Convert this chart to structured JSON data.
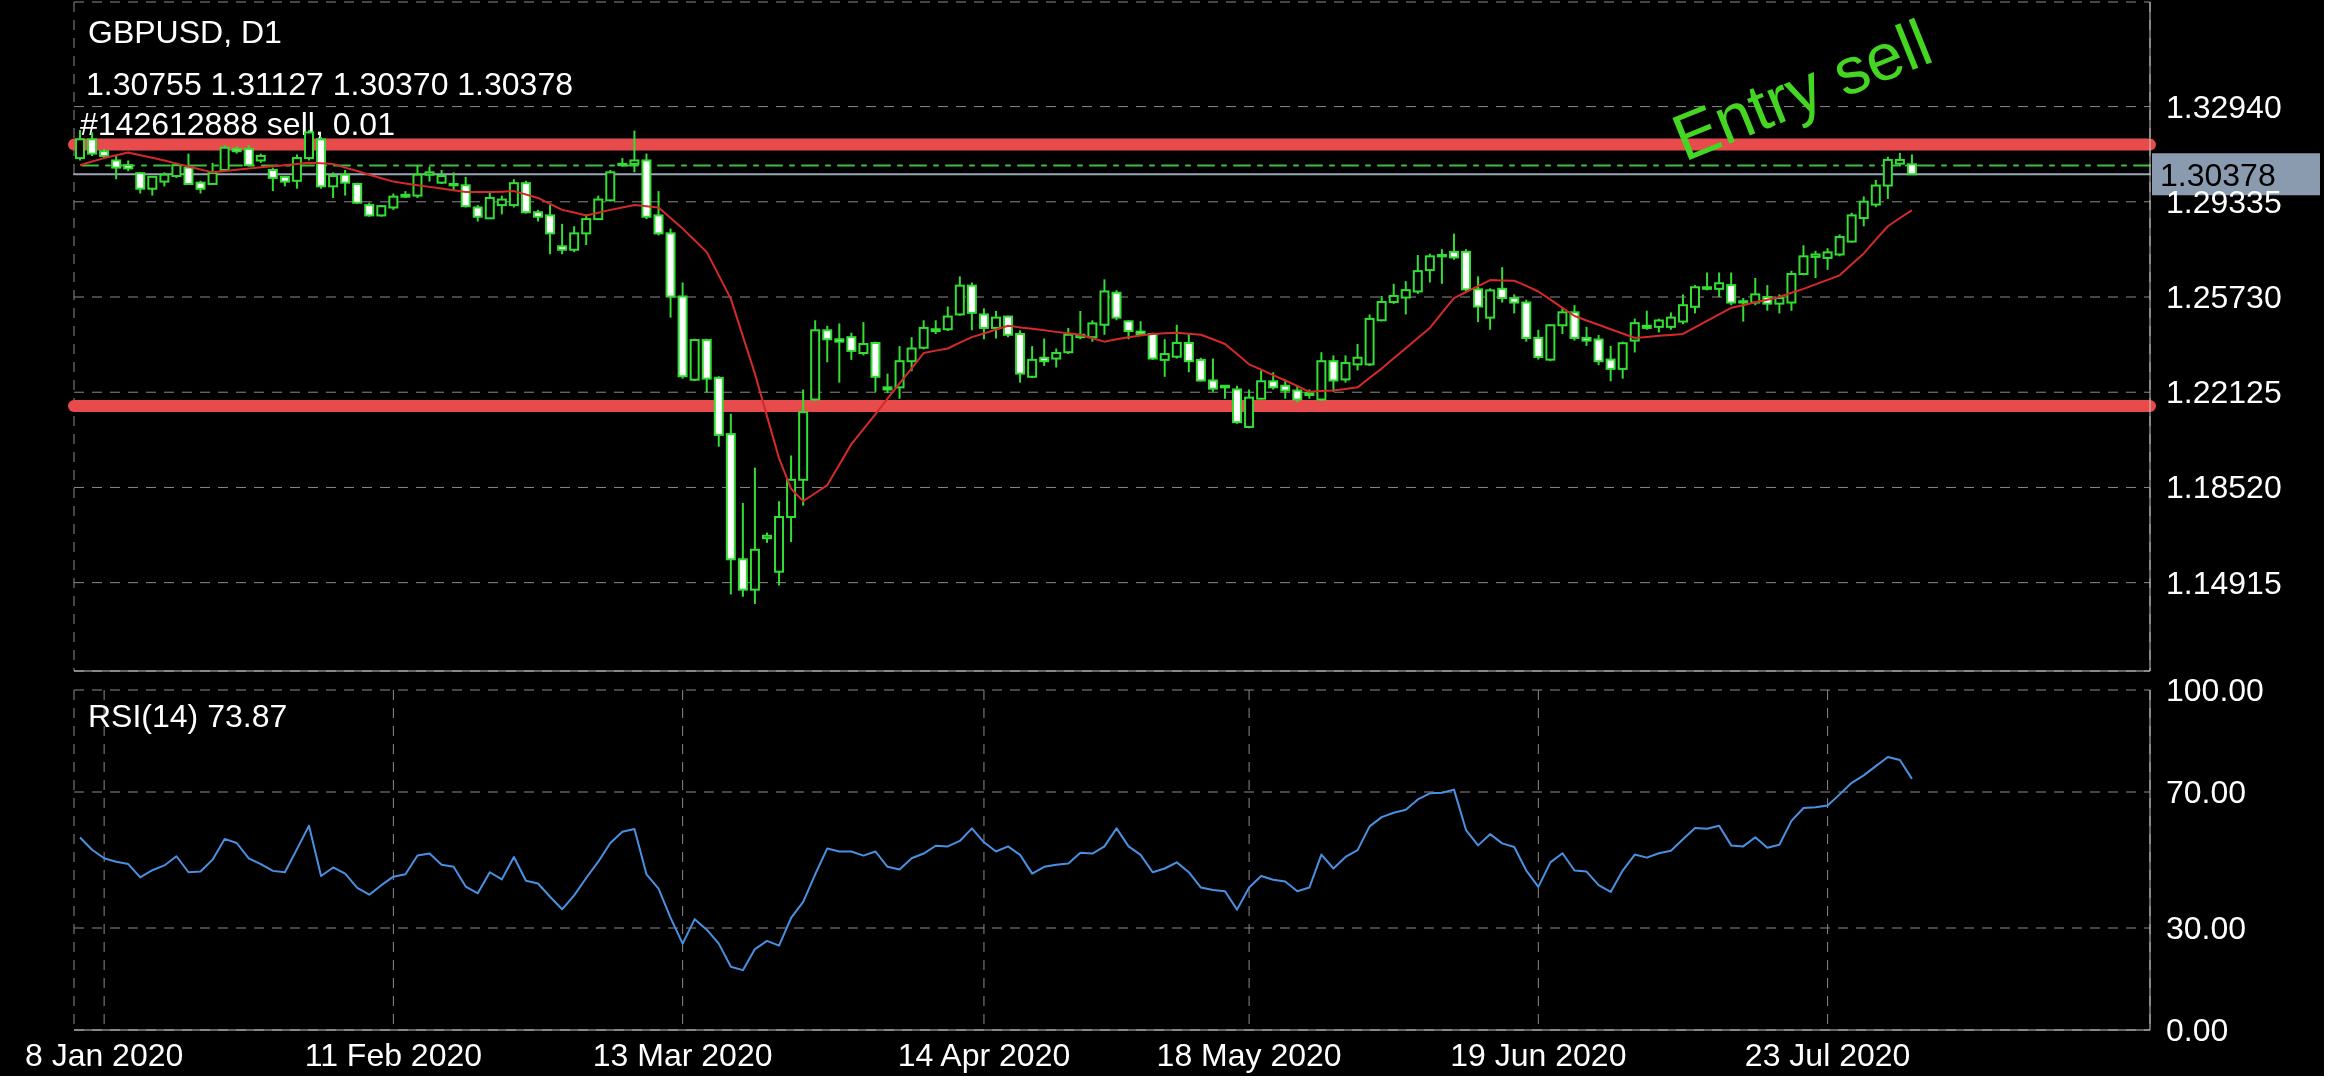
{
  "chart_data": [
    {
      "type": "candlestick",
      "title": "GBPUSD, D1",
      "subtitle": "1.30755 1.31127 1.30370 1.30378",
      "annotations": [
        "Entry sell"
      ],
      "categories": [
        null,
        null,
        null,
        null,
        null,
        null,
        null,
        null,
        null,
        null,
        null,
        null,
        null,
        null,
        null,
        null,
        null,
        null,
        null,
        null,
        null,
        null,
        null,
        null,
        null,
        null,
        null,
        null,
        null,
        null,
        null,
        null,
        null,
        null,
        null,
        null,
        null,
        null,
        null,
        null,
        null,
        null,
        null,
        null,
        null,
        null,
        null,
        null,
        null,
        null,
        null,
        null,
        null,
        null,
        null,
        null,
        null,
        null,
        null,
        null,
        null,
        null,
        null,
        null,
        null,
        null,
        null,
        null,
        null,
        null,
        null,
        null,
        null,
        null,
        null,
        null,
        null,
        null,
        null,
        null,
        null,
        null,
        null,
        null,
        null,
        null,
        null,
        null,
        null,
        null,
        null,
        null,
        null,
        null,
        null,
        null,
        null,
        null,
        null,
        null,
        null,
        null,
        null,
        null,
        null,
        null,
        null,
        null,
        null,
        null,
        null,
        null,
        null,
        null,
        null,
        null,
        null,
        null,
        null,
        null,
        null,
        null,
        null,
        null,
        null,
        null,
        null,
        null,
        null,
        null,
        null,
        null,
        null,
        null,
        null,
        null,
        null,
        null,
        null,
        null,
        null,
        null,
        null,
        null,
        null,
        null,
        null,
        null,
        null,
        null,
        null,
        null,
        null
      ],
      "color": "#33dd33",
      "ohlc": [
        [
          1.3099,
          1.3205,
          1.309,
          1.317
        ],
        [
          1.317,
          1.3196,
          1.3107,
          1.3116
        ],
        [
          1.3125,
          1.3134,
          1.3099,
          1.3107
        ],
        [
          1.309,
          1.3107,
          1.3019,
          1.3063
        ],
        [
          1.3072,
          1.309,
          1.3049,
          1.306
        ],
        [
          1.3042,
          1.3045,
          1.2965,
          1.2983
        ],
        [
          1.2983,
          1.3031,
          1.2957,
          1.3028
        ],
        [
          1.301,
          1.3045,
          1.2992,
          1.3036
        ],
        [
          1.3031,
          1.3081,
          1.3024,
          1.3072
        ],
        [
          1.3063,
          1.3116,
          1.2997,
          1.3001
        ],
        [
          1.3006,
          1.3013,
          1.2965,
          1.2983
        ],
        [
          1.3001,
          1.3081,
          1.2997,
          1.3042
        ],
        [
          1.3054,
          1.3148,
          1.3049,
          1.3138
        ],
        [
          1.3134,
          1.3143,
          1.3116,
          1.3125
        ],
        [
          1.3134,
          1.3148,
          1.3067,
          1.3072
        ],
        [
          1.309,
          1.3116,
          1.3081,
          1.3107
        ],
        [
          1.3054,
          1.3063,
          1.2974,
          1.3024
        ],
        [
          1.3028,
          1.3031,
          1.2992,
          1.301
        ],
        [
          1.3013,
          1.3113,
          1.2983,
          1.3099
        ],
        [
          1.3099,
          1.3205,
          1.309,
          1.3196
        ],
        [
          1.317,
          1.3179,
          1.2983,
          1.2992
        ],
        [
          1.2992,
          1.3045,
          1.2948,
          1.3031
        ],
        [
          1.3036,
          1.3054,
          1.2957,
          1.3006
        ],
        [
          1.3001,
          1.3006,
          1.2926,
          1.293
        ],
        [
          1.2921,
          1.293,
          1.2877,
          1.2882
        ],
        [
          1.2882,
          1.2921,
          1.2877,
          1.2917
        ],
        [
          1.2912,
          1.2965,
          1.2903,
          1.2953
        ],
        [
          1.296,
          1.2974,
          1.2948,
          1.2953
        ],
        [
          1.2957,
          1.3072,
          1.2948,
          1.3036
        ],
        [
          1.3036,
          1.3067,
          1.301,
          1.3045
        ],
        [
          1.3006,
          1.3054,
          1.3001,
          1.3031
        ],
        [
          1.3001,
          1.3045,
          1.2974,
          1.2996
        ],
        [
          1.2996,
          1.3028,
          1.2912,
          1.2917
        ],
        [
          1.2912,
          1.2921,
          1.2859,
          1.2877
        ],
        [
          1.2871,
          1.2974,
          1.2868,
          1.2948
        ],
        [
          1.2921,
          1.2957,
          1.2886,
          1.2942
        ],
        [
          1.2921,
          1.3019,
          1.2912,
          1.3004
        ],
        [
          1.3004,
          1.3013,
          1.2889,
          1.2894
        ],
        [
          1.2894,
          1.2903,
          1.2859,
          1.2877
        ],
        [
          1.2882,
          1.2921,
          1.2735,
          1.2814
        ],
        [
          1.2765,
          1.285,
          1.2735,
          1.2752
        ],
        [
          1.2752,
          1.2841,
          1.2743,
          1.2814
        ],
        [
          1.2814,
          1.2886,
          1.277,
          1.2868
        ],
        [
          1.2868,
          1.2957,
          1.2864,
          1.2942
        ],
        [
          1.2939,
          1.3054,
          1.2935,
          1.3045
        ],
        [
          1.3072,
          1.3099,
          1.3067,
          1.3077
        ],
        [
          1.3077,
          1.3203,
          1.3045,
          1.309
        ],
        [
          1.309,
          1.3116,
          1.2868,
          1.2877
        ],
        [
          1.2882,
          1.2974,
          1.2806,
          1.2814
        ],
        [
          1.2814,
          1.2832,
          1.2495,
          1.2575
        ],
        [
          1.2575,
          1.2628,
          1.2264,
          1.2273
        ],
        [
          1.226,
          1.2415,
          1.2255,
          1.241
        ],
        [
          1.241,
          1.2415,
          1.2211,
          1.2264
        ],
        [
          1.2267,
          1.2273,
          1.2006,
          1.2051
        ],
        [
          1.2054,
          1.2131,
          1.1447,
          1.158
        ],
        [
          1.158,
          1.1793,
          1.1438,
          1.1465
        ],
        [
          1.1465,
          1.1927,
          1.1411,
          1.1616
        ],
        [
          1.166,
          1.1681,
          1.1642,
          1.1669
        ],
        [
          1.1533,
          1.18,
          1.1481,
          1.174
        ],
        [
          1.174,
          1.1973,
          1.1645,
          1.1881
        ],
        [
          1.1881,
          1.2223,
          1.1783,
          1.2137
        ],
        [
          1.2185,
          1.2485,
          1.218,
          1.2447
        ],
        [
          1.2447,
          1.2464,
          1.2326,
          1.2413
        ],
        [
          1.2413,
          1.2473,
          1.2249,
          1.2404
        ],
        [
          1.2421,
          1.2438,
          1.2335,
          1.2369
        ],
        [
          1.2361,
          1.2478,
          1.2352,
          1.2395
        ],
        [
          1.2399,
          1.2404,
          1.2214,
          1.2271
        ],
        [
          1.2231,
          1.2283,
          1.2209,
          1.2223
        ],
        [
          1.2231,
          1.2387,
          1.2188,
          1.233
        ],
        [
          1.233,
          1.2421,
          1.2292,
          1.2378
        ],
        [
          1.2381,
          1.2485,
          1.2375,
          1.2456
        ],
        [
          1.2451,
          1.2485,
          1.2433,
          1.2444
        ],
        [
          1.2451,
          1.2537,
          1.2444,
          1.2499
        ],
        [
          1.2507,
          1.2651,
          1.2502,
          1.2616
        ],
        [
          1.2616,
          1.2628,
          1.2447,
          1.2513
        ],
        [
          1.2507,
          1.253,
          1.2413,
          1.2456
        ],
        [
          1.2456,
          1.252,
          1.2416,
          1.2495
        ],
        [
          1.2499,
          1.2502,
          1.2421,
          1.243
        ],
        [
          1.2433,
          1.2447,
          1.2249,
          1.2283
        ],
        [
          1.2271,
          1.2387,
          1.2266,
          1.2335
        ],
        [
          1.2343,
          1.2416,
          1.2312,
          1.233
        ],
        [
          1.234,
          1.2378,
          1.2306,
          1.2361
        ],
        [
          1.2364,
          1.2456,
          1.2357,
          1.243
        ],
        [
          1.2421,
          1.252,
          1.2413,
          1.243
        ],
        [
          1.2421,
          1.2485,
          1.2404,
          1.2473
        ],
        [
          1.2468,
          1.264,
          1.243,
          1.2594
        ],
        [
          1.2589,
          1.2599,
          1.2485,
          1.2495
        ],
        [
          1.2481,
          1.2485,
          1.2413,
          1.2444
        ],
        [
          1.2442,
          1.2481,
          1.2426,
          1.2433
        ],
        [
          1.2433,
          1.2438,
          1.2335,
          1.234
        ],
        [
          1.2335,
          1.2413,
          1.2271,
          1.2357
        ],
        [
          1.2347,
          1.2468,
          1.234,
          1.2399
        ],
        [
          1.2399,
          1.2433,
          1.2288,
          1.233
        ],
        [
          1.2335,
          1.2343,
          1.2254,
          1.2257
        ],
        [
          1.2257,
          1.234,
          1.2214,
          1.2226
        ],
        [
          1.2237,
          1.224,
          1.2188,
          1.2231
        ],
        [
          1.2223,
          1.2237,
          1.2093,
          1.2099
        ],
        [
          1.2081,
          1.2223,
          1.2076,
          1.2192
        ],
        [
          1.2188,
          1.2295,
          1.2185,
          1.2254
        ],
        [
          1.2254,
          1.2288,
          1.2223,
          1.2231
        ],
        [
          1.2237,
          1.2261,
          1.2188,
          1.2219
        ],
        [
          1.2219,
          1.224,
          1.2174,
          1.2185
        ],
        [
          1.2209,
          1.2223,
          1.2188,
          1.2202
        ],
        [
          1.2185,
          1.2364,
          1.218,
          1.233
        ],
        [
          1.233,
          1.2352,
          1.2214,
          1.2257
        ],
        [
          1.2261,
          1.2352,
          1.2249,
          1.2323
        ],
        [
          1.2318,
          1.2395,
          1.2295,
          1.2343
        ],
        [
          1.2318,
          1.2507,
          1.2312,
          1.249
        ],
        [
          1.2485,
          1.2577,
          1.2481,
          1.2554
        ],
        [
          1.2554,
          1.2623,
          1.2547,
          1.2577
        ],
        [
          1.2571,
          1.2633,
          1.2507,
          1.2599
        ],
        [
          1.2594,
          1.2732,
          1.2585,
          1.2671
        ],
        [
          1.2675,
          1.2737,
          1.2628,
          1.2727
        ],
        [
          1.2727,
          1.2754,
          1.2623,
          1.2732
        ],
        [
          1.2744,
          1.2813,
          1.2714,
          1.2723
        ],
        [
          1.2744,
          1.2754,
          1.2589,
          1.2602
        ],
        [
          1.2602,
          1.2651,
          1.2478,
          1.2537
        ],
        [
          1.2495,
          1.2606,
          1.2449,
          1.2598
        ],
        [
          1.2604,
          1.2686,
          1.2552,
          1.2569
        ],
        [
          1.2569,
          1.2583,
          1.2511,
          1.2552
        ],
        [
          1.2552,
          1.2563,
          1.2404,
          1.2418
        ],
        [
          1.2418,
          1.2449,
          1.2336,
          1.2346
        ],
        [
          1.2336,
          1.247,
          1.233,
          1.2466
        ],
        [
          1.2466,
          1.2532,
          1.2433,
          1.2515
        ],
        [
          1.2515,
          1.2542,
          1.2408,
          1.2418
        ],
        [
          1.2418,
          1.246,
          1.2388,
          1.2408
        ],
        [
          1.2412,
          1.2429,
          1.2315,
          1.233
        ],
        [
          1.2336,
          1.2388,
          1.2254,
          1.2301
        ],
        [
          1.2301,
          1.2404,
          1.2264,
          1.2398
        ],
        [
          1.2408,
          1.2491,
          1.2363,
          1.2474
        ],
        [
          1.2464,
          1.2521,
          1.2449,
          1.2456
        ],
        [
          1.246,
          1.2491,
          1.2439,
          1.2484
        ],
        [
          1.246,
          1.2515,
          1.2449,
          1.2495
        ],
        [
          1.248,
          1.2583,
          1.247,
          1.2542
        ],
        [
          1.2536,
          1.2618,
          1.2511,
          1.261
        ],
        [
          1.2604,
          1.2666,
          1.2598,
          1.261
        ],
        [
          1.2604,
          1.2666,
          1.2573,
          1.2625
        ],
        [
          1.2618,
          1.2666,
          1.2542,
          1.2552
        ],
        [
          1.2557,
          1.2569,
          1.248,
          1.2552
        ],
        [
          1.2552,
          1.2645,
          1.2542,
          1.2583
        ],
        [
          1.2573,
          1.2618,
          1.2521,
          1.2548
        ],
        [
          1.2548,
          1.2583,
          1.2511,
          1.2569
        ],
        [
          1.2552,
          1.2672,
          1.2521,
          1.266
        ],
        [
          1.266,
          1.2769,
          1.2655,
          1.2727
        ],
        [
          1.2725,
          1.2748,
          1.2645,
          1.2734
        ],
        [
          1.2721,
          1.2758,
          1.2676,
          1.2742
        ],
        [
          1.2734,
          1.281,
          1.2727,
          1.28
        ],
        [
          1.2783,
          1.2892,
          1.2779,
          1.2882
        ],
        [
          1.2872,
          1.2954,
          1.2841,
          1.2934
        ],
        [
          1.2923,
          1.3016,
          1.2913,
          1.2995
        ],
        [
          1.2995,
          1.3104,
          1.2944,
          1.3092
        ],
        [
          1.3078,
          1.3119,
          1.3067,
          1.3092
        ],
        [
          1.30755,
          1.31127,
          1.3037,
          1.30378
        ]
      ],
      "series": [
        {
          "type": "line",
          "color": "#d42a2a",
          "values": [
            1.3072,
            1.3086,
            1.3099,
            1.311,
            1.312,
            1.311,
            1.31,
            1.309,
            1.3078,
            1.3067,
            1.3056,
            1.3045,
            1.305,
            1.3055,
            1.306,
            1.3064,
            1.3068,
            1.3072,
            1.3077,
            1.3081,
            1.3079,
            1.3077,
            1.3063,
            1.305,
            1.3036,
            1.3023,
            1.301,
            1.3003,
            1.2996,
            1.299,
            1.2984,
            1.2977,
            1.2971,
            1.2971,
            1.2971,
            1.2972,
            1.2974,
            1.2961,
            1.2948,
            1.2926,
            1.2903,
            1.2893,
            1.2882,
            1.2892,
            1.2903,
            1.2912,
            1.2921,
            1.2917,
            1.2912,
            1.2872,
            1.2832,
            1.2788,
            1.2743,
            1.2655,
            1.2566,
            1.2424,
            1.2282,
            1.2122,
            1.1962,
            1.1847,
            1.18,
            1.183,
            1.1861,
            1.1938,
            1.2016,
            1.2073,
            1.213,
            1.2188,
            1.2246,
            1.2303,
            1.2361,
            1.237,
            1.2378,
            1.24,
            1.2421,
            1.2435,
            1.245,
            1.2464,
            1.2458,
            1.2453,
            1.2447,
            1.2441,
            1.2436,
            1.243,
            1.2417,
            1.2404,
            1.2413,
            1.2421,
            1.2427,
            1.2433,
            1.2436,
            1.2438,
            1.2434,
            1.243,
            1.2413,
            1.2395,
            1.2357,
            1.2318,
            1.2298,
            1.2277,
            1.2257,
            1.2236,
            1.2214,
            1.2217,
            1.2219,
            1.2225,
            1.2231,
            1.2267,
            1.2302,
            1.2341,
            1.2379,
            1.2418,
            1.2456,
            1.2513,
            1.2569,
            1.2592,
            1.2614,
            1.2637,
            1.2636,
            1.2635,
            1.2615,
            1.2594,
            1.2563,
            1.2532,
            1.2501,
            1.2484,
            1.2468,
            1.2451,
            1.2435,
            1.2418,
            1.2422,
            1.2426,
            1.2429,
            1.2433,
            1.2458,
            1.2483,
            1.2507,
            1.2532,
            1.2542,
            1.2553,
            1.2563,
            1.2573,
            1.2589,
            1.2604,
            1.2621,
            1.2638,
            1.2655,
            1.2697,
            1.2738,
            1.279,
            1.2841,
            1.2872,
            1.2902
          ]
        }
      ],
      "ylim": [
        1.1157,
        1.369
      ],
      "yticks": [
        1.14915,
        {
          "value": 1.1852,
          "label": "1.18520"
        },
        1.22125,
        {
          "value": 1.2573,
          "label": "1.25730"
        },
        1.29335,
        {
          "value": 1.3294,
          "label": "1.32940"
        }
      ],
      "ref_lines": [
        {
          "axis": "y",
          "value": 1.315,
          "color": "#e84b4b"
        },
        {
          "axis": "y",
          "value": 1.216,
          "color": "#e84b4b"
        },
        {
          "axis": "y",
          "value": 1.3071,
          "label": "#142612888 sell, 0.01",
          "color": "#3fbf3f",
          "line_style": "dashed"
        },
        {
          "axis": "y",
          "value": 1.30378,
          "label": "1.30378",
          "color": "#9aa7b5",
          "line_style": "solid"
        }
      ],
      "grid": true,
      "tick_labels": "y"
    },
    {
      "type": "line",
      "title": "RSI(14) 73.87",
      "categories": [
        null,
        null,
        "8 Jan 2020",
        null,
        null,
        null,
        null,
        null,
        null,
        null,
        null,
        null,
        null,
        null,
        null,
        null,
        null,
        null,
        null,
        null,
        null,
        null,
        null,
        null,
        null,
        null,
        "11 Feb 2020",
        null,
        null,
        null,
        null,
        null,
        null,
        null,
        null,
        null,
        null,
        null,
        null,
        null,
        null,
        null,
        null,
        null,
        null,
        null,
        null,
        null,
        null,
        null,
        "13 Mar 2020",
        null,
        null,
        null,
        null,
        null,
        null,
        null,
        null,
        null,
        null,
        null,
        null,
        null,
        null,
        null,
        null,
        null,
        null,
        null,
        null,
        null,
        null,
        null,
        null,
        "14 Apr 2020",
        null,
        null,
        null,
        null,
        null,
        null,
        null,
        null,
        null,
        null,
        null,
        null,
        null,
        null,
        null,
        null,
        null,
        null,
        null,
        null,
        null,
        "18 May 2020",
        null,
        null,
        null,
        null,
        null,
        null,
        null,
        null,
        null,
        null,
        null,
        null,
        null,
        null,
        null,
        null,
        null,
        null,
        null,
        null,
        null,
        null,
        null,
        "19 Jun 2020",
        null,
        null,
        null,
        null,
        null,
        null,
        null,
        null,
        null,
        null,
        null,
        null,
        null,
        null,
        null,
        null,
        null,
        null,
        null,
        null,
        null,
        null,
        null,
        "23 Jul 2020",
        null,
        null,
        null,
        null,
        null,
        null,
        null
      ],
      "series": [
        {
          "color": "#4a90e2",
          "values": [
            56.6,
            53.0,
            50.5,
            49.5,
            48.8,
            44.9,
            47.0,
            48.4,
            51.1,
            46.4,
            46.6,
            50.1,
            56.2,
            55.0,
            50.5,
            48.8,
            46.8,
            46.4,
            53.2,
            60.1,
            45.3,
            47.8,
            46.0,
            41.8,
            39.8,
            42.6,
            45.1,
            45.8,
            51.3,
            51.9,
            48.6,
            48.0,
            42.2,
            40.2,
            46.4,
            44.3,
            50.9,
            43.9,
            43.1,
            39.2,
            35.5,
            39.6,
            44.7,
            49.5,
            55.0,
            58.3,
            59.1,
            45.8,
            41.6,
            33.0,
            25.4,
            32.6,
            29.5,
            25.4,
            18.6,
            17.6,
            23.8,
            26.2,
            24.8,
            33.0,
            37.7,
            45.8,
            53.4,
            52.5,
            52.5,
            51.3,
            52.5,
            48.0,
            47.2,
            50.5,
            51.9,
            54.2,
            54.0,
            55.6,
            59.3,
            55.2,
            52.5,
            54.0,
            51.5,
            46.0,
            48.0,
            48.6,
            49.0,
            52.1,
            51.9,
            54.0,
            59.3,
            54.0,
            51.5,
            46.4,
            47.5,
            49.3,
            46.4,
            41.9,
            41.2,
            40.8,
            35.4,
            41.9,
            45.3,
            44.2,
            43.7,
            40.8,
            41.9,
            51.6,
            47.5,
            50.9,
            52.9,
            59.9,
            62.6,
            63.9,
            64.8,
            67.8,
            69.6,
            69.8,
            70.7,
            58.8,
            54.3,
            57.6,
            54.9,
            53.8,
            46.9,
            42.1,
            49.3,
            52.0,
            46.9,
            46.6,
            42.6,
            40.6,
            46.9,
            51.6,
            50.7,
            52.0,
            52.7,
            56.1,
            59.4,
            59.2,
            60.1,
            54.3,
            54.0,
            56.7,
            53.6,
            54.5,
            61.5,
            65.3,
            65.5,
            66.0,
            69.3,
            72.7,
            74.9,
            77.6,
            80.3,
            79.4,
            73.87
          ]
        }
      ],
      "ylim": [
        0,
        100
      ],
      "yticks": [
        {
          "value": 0,
          "label": "0.00"
        },
        {
          "value": 30,
          "label": "30.00"
        },
        {
          "value": 70,
          "label": "70.00"
        },
        {
          "value": 100,
          "label": "100.00"
        }
      ],
      "grid": true
    }
  ]
}
